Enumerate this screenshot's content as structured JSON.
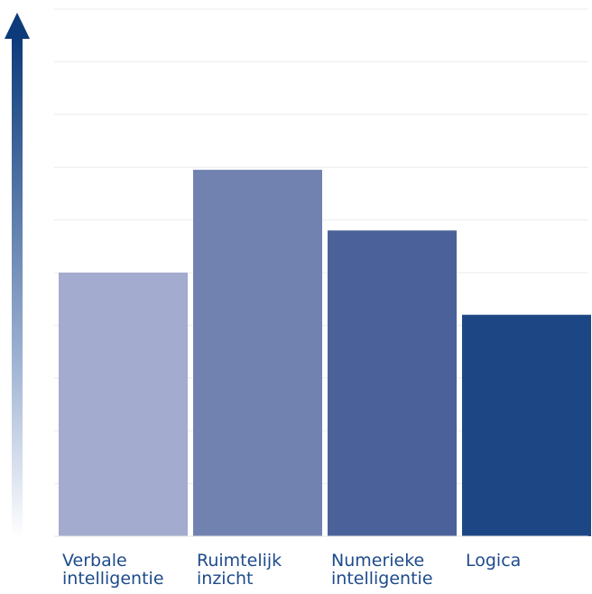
{
  "chart_data": {
    "type": "bar",
    "title": "",
    "xlabel": "",
    "ylabel": "",
    "ylim": [
      0,
      10
    ],
    "grid": true,
    "categories": [
      [
        "Verbale",
        "intelligentie"
      ],
      [
        "Ruimtelijk",
        "inzicht"
      ],
      [
        "Numerieke",
        "intelligentie"
      ],
      [
        "Logica"
      ]
    ],
    "values": [
      5.0,
      6.95,
      5.8,
      4.2
    ],
    "colors": [
      "#a3abce",
      "#7282b0",
      "#4a6299",
      "#1d4784"
    ],
    "label_color": "#1e4b8c",
    "arrow_color": "#0c3a7a"
  }
}
